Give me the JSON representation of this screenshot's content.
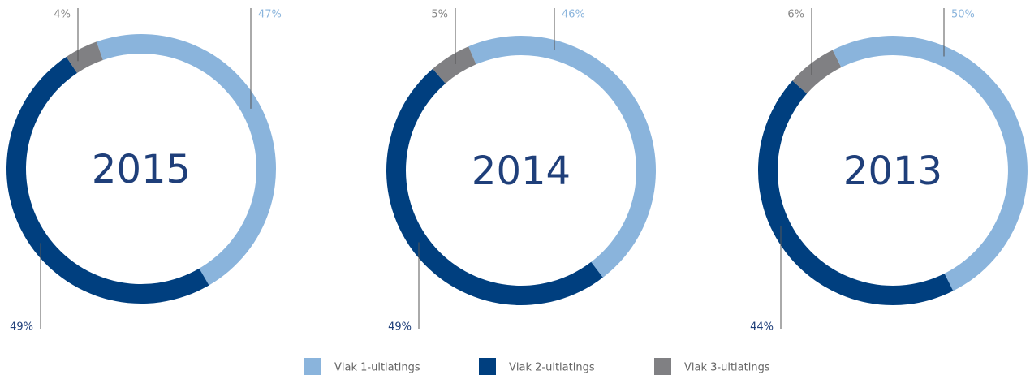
{
  "chart_data": [
    {
      "type": "donut",
      "title": "2015",
      "values": [
        47,
        49,
        4
      ],
      "value_labels": [
        "47%",
        "49%",
        "4%"
      ]
    },
    {
      "type": "donut",
      "title": "2014",
      "values": [
        46,
        49,
        5
      ],
      "value_labels": [
        "46%",
        "49%",
        "5%"
      ]
    },
    {
      "type": "donut",
      "title": "2013",
      "values": [
        50,
        44,
        6
      ],
      "value_labels": [
        "50%",
        "44%",
        "6%"
      ]
    }
  ],
  "legend": {
    "labels": [
      "Vlak 1-uitlatings",
      "Vlak 2-uitlatings",
      "Vlak 3-uitlatings"
    ],
    "colors": [
      "#8ab4dc",
      "#003f7f",
      "#808083"
    ]
  }
}
